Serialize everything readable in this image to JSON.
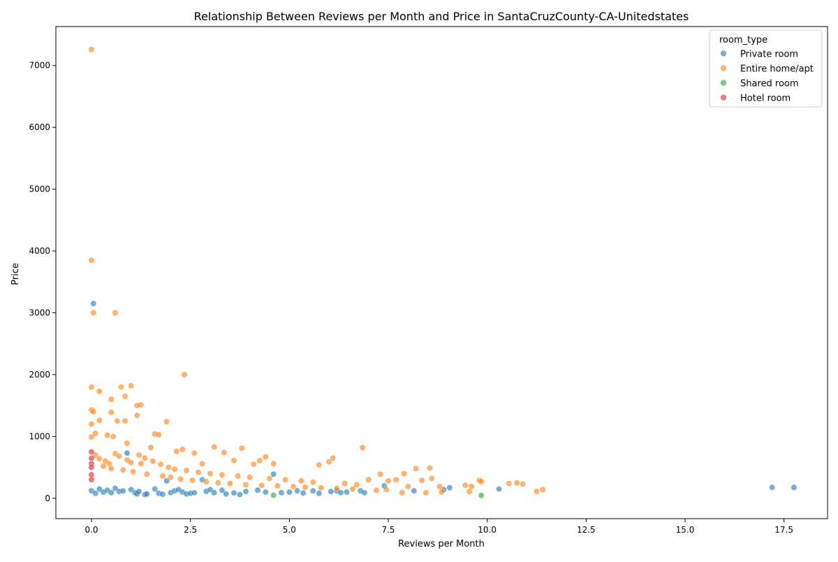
{
  "chart_data": {
    "type": "scatter",
    "title": "Relationship Between Reviews per Month and Price in SantaCruzCounty-CA-Unitedstates",
    "xlabel": "Reviews per Month",
    "ylabel": "Price",
    "xlim": [
      -0.9,
      18.6
    ],
    "ylim": [
      -330,
      7630
    ],
    "x_ticks": [
      0.0,
      2.5,
      5.0,
      7.5,
      10.0,
      12.5,
      15.0,
      17.5
    ],
    "x_tick_labels": [
      "0.0",
      "2.5",
      "5.0",
      "7.5",
      "10.0",
      "12.5",
      "15.0",
      "17.5"
    ],
    "y_ticks": [
      0,
      1000,
      2000,
      3000,
      4000,
      5000,
      6000,
      7000
    ],
    "y_tick_labels": [
      "0",
      "1000",
      "2000",
      "3000",
      "4000",
      "5000",
      "6000",
      "7000"
    ],
    "grid": false,
    "legend": {
      "title": "room_type",
      "placement": "top-right"
    },
    "series": [
      {
        "name": "Private room",
        "color": "#1f77b4",
        "points": [
          [
            0.05,
            3150
          ],
          [
            0.0,
            120
          ],
          [
            0.1,
            80
          ],
          [
            0.2,
            150
          ],
          [
            0.3,
            100
          ],
          [
            0.4,
            130
          ],
          [
            0.5,
            90
          ],
          [
            0.6,
            160
          ],
          [
            0.7,
            110
          ],
          [
            0.8,
            120
          ],
          [
            0.9,
            730
          ],
          [
            1.0,
            140
          ],
          [
            1.1,
            90
          ],
          [
            1.15,
            70
          ],
          [
            1.2,
            110
          ],
          [
            1.35,
            60
          ],
          [
            1.4,
            70
          ],
          [
            1.6,
            150
          ],
          [
            1.7,
            80
          ],
          [
            1.8,
            65
          ],
          [
            1.9,
            280
          ],
          [
            2.0,
            90
          ],
          [
            2.1,
            120
          ],
          [
            2.2,
            140
          ],
          [
            2.3,
            100
          ],
          [
            2.4,
            70
          ],
          [
            2.5,
            80
          ],
          [
            2.6,
            90
          ],
          [
            2.8,
            300
          ],
          [
            2.9,
            110
          ],
          [
            3.0,
            140
          ],
          [
            3.1,
            90
          ],
          [
            3.3,
            130
          ],
          [
            3.4,
            70
          ],
          [
            3.6,
            85
          ],
          [
            3.75,
            60
          ],
          [
            3.9,
            110
          ],
          [
            4.2,
            130
          ],
          [
            4.4,
            100
          ],
          [
            4.6,
            390
          ],
          [
            4.8,
            90
          ],
          [
            5.0,
            100
          ],
          [
            5.2,
            120
          ],
          [
            5.35,
            85
          ],
          [
            5.6,
            120
          ],
          [
            5.75,
            80
          ],
          [
            6.05,
            110
          ],
          [
            6.2,
            120
          ],
          [
            6.3,
            90
          ],
          [
            6.45,
            100
          ],
          [
            6.8,
            120
          ],
          [
            6.9,
            90
          ],
          [
            7.4,
            200
          ],
          [
            8.15,
            120
          ],
          [
            8.9,
            140
          ],
          [
            9.05,
            170
          ],
          [
            10.3,
            150
          ],
          [
            17.2,
            175
          ],
          [
            17.75,
            175
          ]
        ]
      },
      {
        "name": "Entire home/apt",
        "color": "#ff7f0e",
        "points": [
          [
            0.0,
            7260
          ],
          [
            0.0,
            3850
          ],
          [
            0.05,
            3000
          ],
          [
            0.6,
            3000
          ],
          [
            2.35,
            2000
          ],
          [
            0.0,
            1800
          ],
          [
            0.2,
            1730
          ],
          [
            0.75,
            1800
          ],
          [
            1.0,
            1820
          ],
          [
            0.85,
            1650
          ],
          [
            0.5,
            1600
          ],
          [
            1.25,
            1510
          ],
          [
            1.15,
            1500
          ],
          [
            0.0,
            1430
          ],
          [
            0.05,
            1400
          ],
          [
            0.5,
            1390
          ],
          [
            1.15,
            1340
          ],
          [
            0.2,
            1260
          ],
          [
            0.0,
            1200
          ],
          [
            0.65,
            1250
          ],
          [
            0.85,
            1250
          ],
          [
            1.9,
            1240
          ],
          [
            0.1,
            1050
          ],
          [
            0.4,
            1020
          ],
          [
            0.55,
            1000
          ],
          [
            0.0,
            990
          ],
          [
            1.6,
            1040
          ],
          [
            1.7,
            1030
          ],
          [
            3.1,
            830
          ],
          [
            3.8,
            810
          ],
          [
            6.85,
            820
          ],
          [
            0.9,
            890
          ],
          [
            1.5,
            820
          ],
          [
            2.15,
            760
          ],
          [
            2.3,
            790
          ],
          [
            2.6,
            730
          ],
          [
            3.35,
            740
          ],
          [
            4.4,
            670
          ],
          [
            4.25,
            610
          ],
          [
            6.1,
            650
          ],
          [
            5.75,
            540
          ],
          [
            6.0,
            590
          ],
          [
            4.1,
            550
          ],
          [
            4.6,
            560
          ],
          [
            3.6,
            610
          ],
          [
            2.8,
            560
          ],
          [
            1.25,
            560
          ],
          [
            0.3,
            520
          ],
          [
            0.5,
            480
          ],
          [
            0.8,
            460
          ],
          [
            1.05,
            430
          ],
          [
            1.4,
            390
          ],
          [
            1.8,
            360
          ],
          [
            2.0,
            340
          ],
          [
            2.25,
            310
          ],
          [
            2.55,
            290
          ],
          [
            2.9,
            270
          ],
          [
            3.2,
            250
          ],
          [
            3.5,
            240
          ],
          [
            3.9,
            220
          ],
          [
            4.3,
            210
          ],
          [
            4.7,
            200
          ],
          [
            5.1,
            190
          ],
          [
            5.4,
            180
          ],
          [
            5.8,
            170
          ],
          [
            6.2,
            160
          ],
          [
            6.6,
            150
          ],
          [
            7.0,
            300
          ],
          [
            7.3,
            390
          ],
          [
            7.5,
            280
          ],
          [
            7.7,
            300
          ],
          [
            7.9,
            400
          ],
          [
            8.0,
            190
          ],
          [
            8.2,
            480
          ],
          [
            8.35,
            290
          ],
          [
            8.55,
            490
          ],
          [
            8.6,
            320
          ],
          [
            8.8,
            190
          ],
          [
            8.85,
            100
          ],
          [
            9.45,
            210
          ],
          [
            9.6,
            190
          ],
          [
            9.8,
            290
          ],
          [
            9.85,
            270
          ],
          [
            10.55,
            240
          ],
          [
            10.75,
            250
          ],
          [
            10.9,
            230
          ],
          [
            11.25,
            110
          ],
          [
            11.4,
            140
          ],
          [
            0.1,
            700
          ],
          [
            0.2,
            640
          ],
          [
            0.35,
            600
          ],
          [
            0.45,
            560
          ],
          [
            0.6,
            720
          ],
          [
            0.7,
            680
          ],
          [
            0.9,
            620
          ],
          [
            1.0,
            580
          ],
          [
            1.2,
            700
          ],
          [
            1.35,
            650
          ],
          [
            1.55,
            600
          ],
          [
            1.75,
            550
          ],
          [
            1.95,
            500
          ],
          [
            2.1,
            470
          ],
          [
            2.4,
            450
          ],
          [
            2.7,
            420
          ],
          [
            3.0,
            400
          ],
          [
            3.3,
            380
          ],
          [
            3.7,
            360
          ],
          [
            4.0,
            340
          ],
          [
            4.5,
            320
          ],
          [
            4.9,
            300
          ],
          [
            5.3,
            280
          ],
          [
            5.6,
            260
          ],
          [
            6.4,
            240
          ],
          [
            6.7,
            220
          ],
          [
            7.2,
            130
          ],
          [
            7.45,
            140
          ],
          [
            7.85,
            90
          ],
          [
            8.45,
            90
          ],
          [
            9.55,
            110
          ]
        ]
      },
      {
        "name": "Shared room",
        "color": "#2ca02c",
        "points": [
          [
            4.6,
            50
          ],
          [
            9.85,
            45
          ]
        ]
      },
      {
        "name": "Hotel room",
        "color": "#d62728",
        "points": [
          [
            0.0,
            750
          ],
          [
            0.0,
            650
          ],
          [
            0.0,
            560
          ],
          [
            0.0,
            500
          ],
          [
            0.0,
            380
          ],
          [
            0.0,
            300
          ]
        ]
      }
    ]
  }
}
